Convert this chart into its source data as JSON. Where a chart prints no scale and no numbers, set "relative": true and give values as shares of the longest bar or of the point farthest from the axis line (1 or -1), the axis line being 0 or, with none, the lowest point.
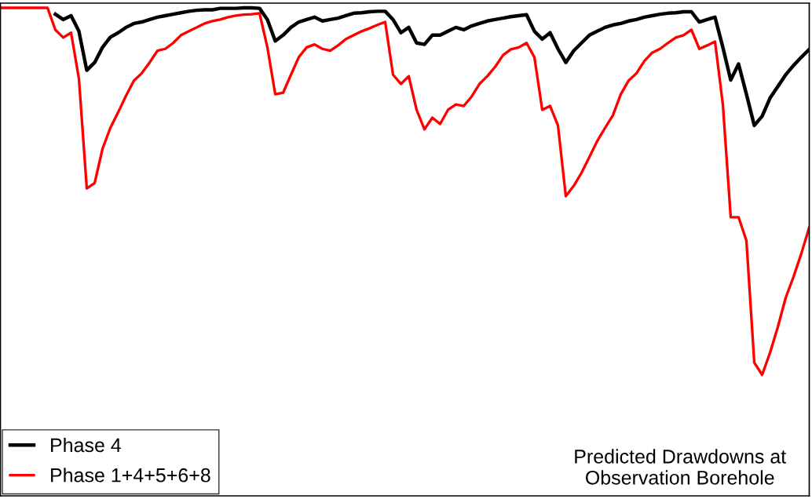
{
  "chart_data": {
    "type": "line",
    "relative": true,
    "categories": [
      null,
      null,
      null,
      null,
      null,
      null,
      null,
      null,
      null,
      null,
      null,
      null,
      null,
      null,
      null,
      null,
      null,
      null,
      null,
      null,
      null,
      null,
      null,
      null,
      null,
      null,
      null,
      null,
      null,
      null,
      null,
      null,
      null,
      null,
      null,
      null,
      null,
      null,
      null,
      null,
      null,
      null,
      null,
      null,
      null,
      null,
      null,
      null,
      null,
      null,
      null,
      null,
      null,
      null,
      null,
      null,
      null,
      null,
      null,
      null,
      null,
      null,
      null,
      null,
      null,
      null,
      null,
      null,
      null,
      null,
      null,
      null,
      null,
      null,
      null,
      null,
      null,
      null,
      null,
      null,
      null,
      null,
      null,
      null,
      null,
      null,
      null,
      null,
      null,
      null,
      null,
      null,
      null,
      null,
      null,
      null,
      null,
      null,
      null,
      null,
      null,
      null,
      null,
      null
    ],
    "series": [
      {
        "name": "Phase 4",
        "color": "#000000",
        "values": [
          null,
          null,
          null,
          null,
          null,
          null,
          null,
          0.987,
          0.976,
          0.984,
          0.952,
          0.872,
          0.888,
          0.919,
          0.94,
          0.949,
          0.96,
          0.968,
          0.971,
          0.976,
          0.981,
          0.984,
          0.987,
          0.99,
          0.993,
          0.995,
          0.996,
          0.996,
          0.999,
          0.999,
          0.999,
          1.0,
          1.0,
          0.999,
          0.976,
          0.932,
          0.944,
          0.96,
          0.971,
          0.976,
          0.981,
          0.973,
          0.976,
          0.979,
          0.984,
          0.989,
          0.99,
          0.992,
          0.993,
          0.993,
          0.976,
          0.949,
          0.96,
          0.928,
          0.925,
          0.944,
          0.944,
          0.952,
          0.96,
          0.955,
          0.963,
          0.968,
          0.973,
          0.976,
          0.979,
          0.982,
          0.984,
          0.986,
          0.952,
          0.936,
          0.949,
          0.916,
          0.888,
          0.912,
          0.928,
          0.944,
          0.952,
          0.96,
          0.965,
          0.968,
          0.973,
          0.976,
          0.981,
          0.984,
          0.987,
          0.989,
          0.99,
          0.992,
          0.992,
          0.971,
          0.976,
          0.981,
          0.919,
          0.852,
          0.885,
          0.823,
          0.759,
          0.778,
          0.815,
          0.839,
          0.863,
          0.882,
          0.899,
          0.915
        ]
      },
      {
        "name": "Phase 1+4+5+6+8",
        "color": "#ff0000",
        "values": [
          1.0,
          1.0,
          1.0,
          1.0,
          1.0,
          1.0,
          1.0,
          0.955,
          0.939,
          0.949,
          0.855,
          0.63,
          0.641,
          0.711,
          0.754,
          0.786,
          0.82,
          0.851,
          0.866,
          0.888,
          0.912,
          0.916,
          0.928,
          0.944,
          0.952,
          0.96,
          0.968,
          0.973,
          0.976,
          0.981,
          0.984,
          0.986,
          0.987,
          0.989,
          0.919,
          0.823,
          0.826,
          0.863,
          0.899,
          0.919,
          0.925,
          0.916,
          0.912,
          0.923,
          0.936,
          0.944,
          0.952,
          0.958,
          0.965,
          0.971,
          0.863,
          0.844,
          0.86,
          0.791,
          0.751,
          0.775,
          0.762,
          0.791,
          0.802,
          0.799,
          0.818,
          0.844,
          0.86,
          0.879,
          0.903,
          0.915,
          0.919,
          0.928,
          0.899,
          0.791,
          0.799,
          0.759,
          0.614,
          0.635,
          0.662,
          0.694,
          0.727,
          0.754,
          0.78,
          0.823,
          0.851,
          0.866,
          0.891,
          0.908,
          0.916,
          0.928,
          0.939,
          0.944,
          0.955,
          0.916,
          0.923,
          0.931,
          0.802,
          0.571,
          0.571,
          0.523,
          0.273,
          0.248,
          0.293,
          0.346,
          0.406,
          0.449,
          0.497,
          0.55
        ]
      }
    ],
    "legend": "bottom left",
    "annotations": [
      "Predicted Drawdowns at\nObservation Borehole"
    ]
  }
}
